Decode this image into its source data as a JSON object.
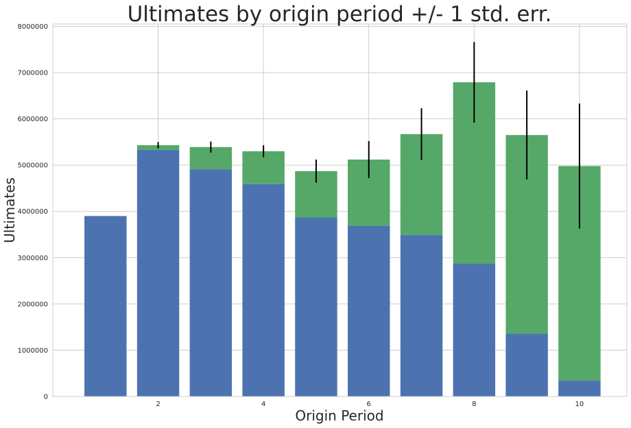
{
  "chart_data": {
    "type": "bar",
    "title": "Ultimates by origin period +/- 1 std. err.",
    "xlabel": "Origin Period",
    "ylabel": "Ultimates",
    "x": [
      1,
      2,
      3,
      4,
      5,
      6,
      7,
      8,
      9,
      10
    ],
    "xlim": [
      0.0,
      10.9
    ],
    "ylim": [
      0,
      8050000
    ],
    "x_ticks": [
      2,
      4,
      6,
      8,
      10
    ],
    "y_ticks": [
      0,
      1000000,
      2000000,
      3000000,
      4000000,
      5000000,
      6000000,
      7000000,
      8000000
    ],
    "grid": true,
    "stacked": true,
    "series": [
      {
        "color": "#4c72b0",
        "values": [
          3900000,
          5330000,
          4910000,
          4590000,
          3870000,
          3690000,
          3490000,
          2870000,
          1360000,
          340000
        ]
      },
      {
        "color": "#55a868",
        "values": [
          0,
          100000,
          480000,
          710000,
          1000000,
          1430000,
          2180000,
          3920000,
          4290000,
          4640000
        ]
      }
    ],
    "error_bars": {
      "color": "#000000",
      "std_err": [
        0,
        70000,
        120000,
        130000,
        250000,
        400000,
        560000,
        870000,
        960000,
        1350000
      ]
    }
  }
}
